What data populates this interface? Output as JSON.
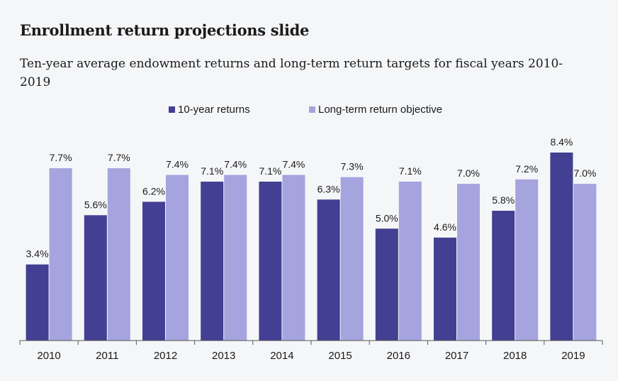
{
  "title": "Enrollment return projections slide",
  "subtitle": "Ten-year average endowment returns and long-term return targets for fiscal years 2010-2019",
  "colors": {
    "series_dark": "#433f92",
    "series_light": "#a5a4de",
    "background": "#f5f6f8",
    "text": "#1a1a1a",
    "axis": "#555555"
  },
  "chart_data": {
    "type": "bar",
    "title": "Enrollment return projections slide",
    "subtitle": "Ten-year average endowment returns and long-term return targets for fiscal years 2010-2019",
    "categories": [
      "2010",
      "2011",
      "2012",
      "2013",
      "2014",
      "2015",
      "2016",
      "2017",
      "2018",
      "2019"
    ],
    "series": [
      {
        "name": "10-year returns",
        "color": "#433f92",
        "values": [
          3.4,
          5.6,
          6.2,
          7.1,
          7.1,
          6.3,
          5.0,
          4.6,
          5.8,
          8.4
        ],
        "labels": [
          "3.4%",
          "5.6%",
          "6.2%",
          "7.1%",
          "7.1%",
          "6.3%",
          "5.0%",
          "4.6%",
          "5.8%",
          "8.4%"
        ]
      },
      {
        "name": "Long-term return objective",
        "color": "#a5a4de",
        "values": [
          7.7,
          7.7,
          7.4,
          7.4,
          7.4,
          7.3,
          7.1,
          7.0,
          7.2,
          7.0
        ],
        "labels": [
          "7.7%",
          "7.7%",
          "7.4%",
          "7.4%",
          "7.4%",
          "7.3%",
          "7.1%",
          "7.0%",
          "7.2%",
          "7.0%"
        ]
      }
    ],
    "xlabel": "",
    "ylabel": "",
    "ylim": [
      0,
      8.4
    ],
    "grid": false,
    "legend": "top-center"
  }
}
